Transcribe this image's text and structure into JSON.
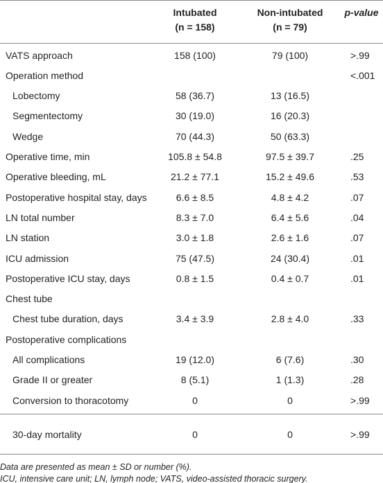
{
  "header": {
    "columns": [
      {
        "title": "Intubated",
        "subtitle": "(n = 158)"
      },
      {
        "title": "Non-intubated",
        "subtitle": "(n = 79)"
      },
      {
        "title": "p-value"
      }
    ]
  },
  "body": {
    "rows": [
      {
        "label": "VATS approach",
        "values": [
          "158 (100)",
          "79 (100)",
          ">.99"
        ]
      },
      {
        "label": "Operation method",
        "values": [
          null,
          null,
          "<.001"
        ],
        "items": [
          {
            "label": "Lobectomy",
            "values": [
              "58 (36.7)",
              "13 (16.5)",
              null
            ]
          },
          {
            "label": "Segmentectomy",
            "values": [
              "30 (19.0)",
              "16 (20.3)",
              null
            ]
          },
          {
            "label": "Wedge",
            "values": [
              "70 (44.3)",
              "50 (63.3)",
              null
            ]
          }
        ]
      },
      {
        "label": "Operative time, min",
        "values": [
          "105.8 ± 54.8",
          "97.5 ± 39.7",
          ".25"
        ]
      },
      {
        "label": "Operative bleeding, mL",
        "values": [
          "21.2 ± 77.1",
          "15.2 ± 49.6",
          ".53"
        ]
      },
      {
        "label": "Postoperative hospital stay, days",
        "values": [
          "6.6 ± 8.5",
          "4.8 ± 4.2",
          ".07"
        ]
      },
      {
        "label": "LN total number",
        "values": [
          "8.3 ± 7.0",
          "6.4 ± 5.6",
          ".04"
        ]
      },
      {
        "label": "LN station",
        "values": [
          "3.0 ± 1.8",
          "2.6 ± 1.6",
          ".07"
        ]
      },
      {
        "label": "ICU admission",
        "values": [
          "75 (47.5)",
          "24 (30.4)",
          ".01"
        ]
      },
      {
        "label": "Postoperative ICU stay, days",
        "values": [
          "0.8 ± 1.5",
          "0.4 ± 0.7",
          ".01"
        ]
      },
      {
        "label": "Chest tube",
        "values": [
          null,
          null,
          null
        ],
        "items": [
          {
            "label": "Chest tube duration, days",
            "values": [
              "3.4 ± 3.9",
              "2.8 ± 4.0",
              ".33"
            ]
          }
        ]
      },
      {
        "label": "Postoperative complications",
        "values": [
          null,
          null,
          null
        ],
        "items": [
          {
            "label": "All complications",
            "values": [
              "19 (12.0)",
              "6 (7.6)",
              ".30"
            ]
          },
          {
            "label": "Grade II or greater",
            "values": [
              "8 (5.1)",
              "1 (1.3)",
              ".28"
            ]
          },
          {
            "label": "Conversion to thoracotomy",
            "values": [
              "0",
              "0",
              ">.99"
            ]
          }
        ]
      }
    ]
  },
  "separate_rows": [
    {
      "label": "30-day mortality",
      "values": [
        "0",
        "0",
        ">.99"
      ]
    }
  ],
  "notes": [
    "Data are presented as mean ± SD or number (%).",
    "ICU, intensive care unit; LN, lymph node; VATS, video-assisted thoracic surgery."
  ]
}
